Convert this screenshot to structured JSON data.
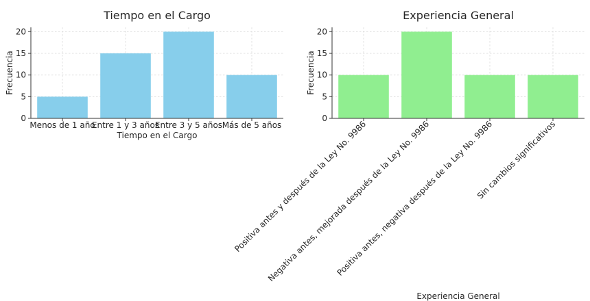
{
  "chart_data": [
    {
      "type": "bar",
      "title": "Tiempo en el Cargo",
      "xlabel": "Tiempo en el Cargo",
      "ylabel": "Frecuencia",
      "categories": [
        "Menos de 1 año",
        "Entre 1 y 3 años",
        "Entre 3 y 5 años",
        "Más de 5 años"
      ],
      "values": [
        5,
        15,
        20,
        10
      ],
      "ylim": [
        0,
        21
      ],
      "yticks": [
        "0",
        "5",
        "10",
        "15",
        "20"
      ],
      "grid": true,
      "color": "#87ceeb",
      "xtick_rotation": 0
    },
    {
      "type": "bar",
      "title": "Experiencia General",
      "xlabel": "Experiencia General",
      "ylabel": "Frecuencia",
      "categories": [
        "Positiva antes y después de la Ley No. 9986",
        "Negativa antes, mejorada después de la Ley No. 9986",
        "Positiva antes, negativa después de la Ley No. 9986",
        "Sin cambios significativos"
      ],
      "values": [
        10,
        20,
        10,
        10
      ],
      "ylim": [
        0,
        21
      ],
      "yticks": [
        "0",
        "5",
        "10",
        "15",
        "20"
      ],
      "grid": true,
      "color": "#90ee90",
      "xtick_rotation": 45
    }
  ]
}
